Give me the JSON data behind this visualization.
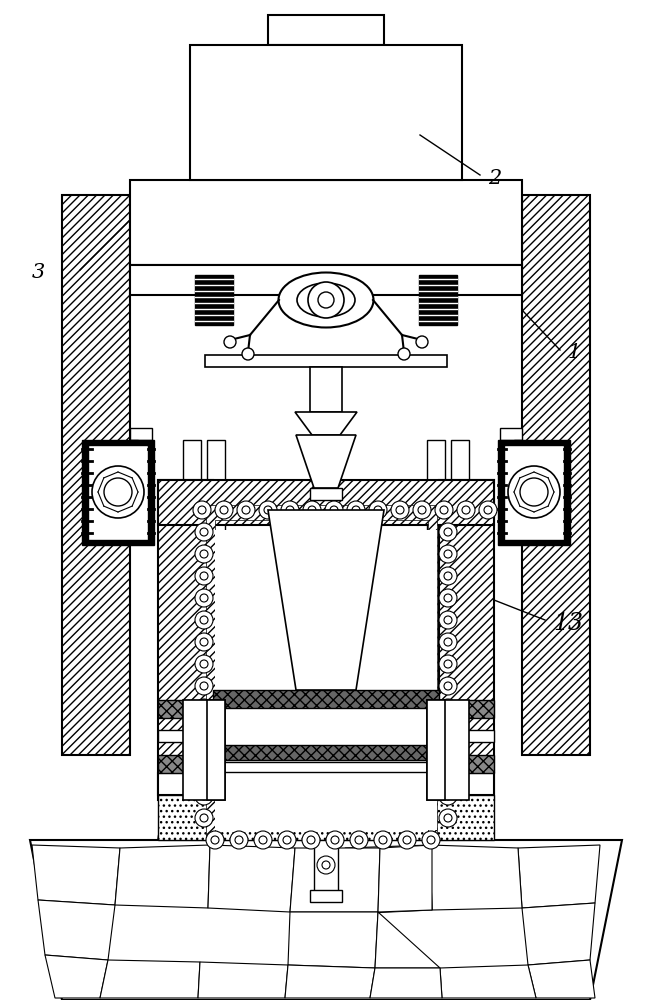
{
  "bg_color": "#ffffff",
  "lc": "#000000",
  "label_2": "2",
  "label_3": "3",
  "label_1": "1",
  "label_13": "13",
  "fig_width": 6.52,
  "fig_height": 10.0
}
